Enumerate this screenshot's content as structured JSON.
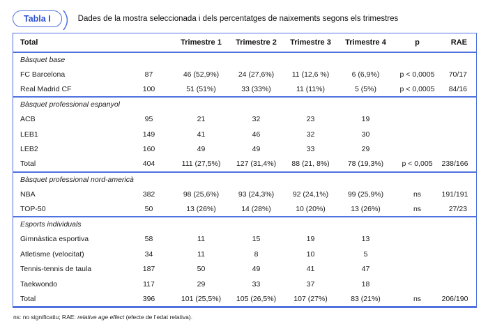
{
  "colors": {
    "accent_line": "#4f72e0",
    "accent_text": "#2b50d0",
    "text": "#1a1a1a"
  },
  "caption": {
    "tag": "Tabla I",
    "title": "Dades de la mostra seleccionada i dels percentatges de naixements segons els trimestres"
  },
  "table": {
    "columns": [
      "Total",
      "",
      "Trimestre 1",
      "Trimestre 2",
      "Trimestre 3",
      "Trimestre 4",
      "p",
      "RAE"
    ],
    "sections": [
      {
        "label": "Bàsquet base",
        "rows": [
          [
            "FC Barcelona",
            "87",
            "46 (52,9%)",
            "24 (27,6%)",
            "11 (12,6 %)",
            "6 (6,9%)",
            "p < 0,0005",
            "70/17"
          ],
          [
            "Real Madrid CF",
            "100",
            "51 (51%)",
            "33 (33%)",
            "11 (11%)",
            "5 (5%)",
            "p < 0,0005",
            "84/16"
          ]
        ]
      },
      {
        "label": "Bàsquet professional espanyol",
        "rows": [
          [
            "ACB",
            "95",
            "21",
            "32",
            "23",
            "19",
            "",
            ""
          ],
          [
            "LEB1",
            "149",
            "41",
            "46",
            "32",
            "30",
            "",
            ""
          ],
          [
            "LEB2",
            "160",
            "49",
            "49",
            "33",
            "29",
            "",
            ""
          ],
          [
            "Total",
            "404",
            "111 (27,5%)",
            "127 (31,4%)",
            "88 (21, 8%)",
            "78 (19,3%)",
            "p < 0,005",
            "238/166"
          ]
        ]
      },
      {
        "label": "Bàsquet professional nord-americà",
        "rows": [
          [
            "NBA",
            "382",
            "98 (25,6%)",
            "93 (24,3%)",
            "92 (24,1%)",
            "99 (25,9%)",
            "ns",
            "191/191"
          ],
          [
            "TOP-50",
            "50",
            "13 (26%)",
            "14 (28%)",
            "10 (20%)",
            "13 (26%)",
            "ns",
            "27/23"
          ]
        ]
      },
      {
        "label": "Esports individuals",
        "rows": [
          [
            "Gimnàstica esportiva",
            "58",
            "11",
            "15",
            "19",
            "13",
            "",
            ""
          ],
          [
            "Atletisme (velocitat)",
            "34",
            "11",
            "8",
            "10",
            "5",
            "",
            ""
          ],
          [
            "Tennis-tennis de taula",
            "187",
            "50",
            "49",
            "41",
            "47",
            "",
            ""
          ],
          [
            "Taekwondo",
            "117",
            "29",
            "33",
            "37",
            "18",
            "",
            ""
          ],
          [
            "Total",
            "396",
            "101 (25,5%)",
            "105 (26,5%)",
            "107 (27%)",
            "83 (21%)",
            "ns",
            "206/190"
          ]
        ]
      }
    ]
  },
  "footnote": {
    "prefix": "ns: no significatiu; RAE: ",
    "italic": "relative age effect",
    "suffix": " (efecte de l’edat relativa)."
  }
}
